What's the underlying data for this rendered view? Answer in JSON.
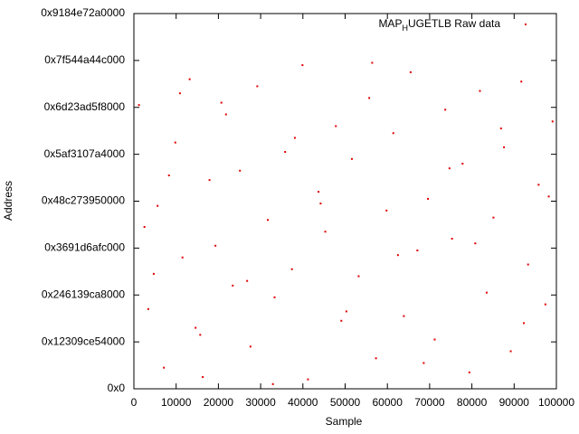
{
  "chart_data": {
    "type": "scatter",
    "xlabel": "Sample",
    "ylabel": "Address",
    "xlim": [
      0,
      100000
    ],
    "xticks": [
      0,
      10000,
      20000,
      30000,
      40000,
      50000,
      60000,
      70000,
      80000,
      90000,
      100000
    ],
    "ylim": [
      0,
      160000000000000.0
    ],
    "yticks": [
      {
        "value": 0,
        "label": "0x0"
      },
      {
        "value": 20000000000000.0,
        "label": "0x12309ce54000"
      },
      {
        "value": 40000000000000.0,
        "label": "0x246139ca8000"
      },
      {
        "value": 60000000000000.0,
        "label": "0x3691d6afc000"
      },
      {
        "value": 80000000000000.0,
        "label": "0x48c273950000"
      },
      {
        "value": 100000000000000.0,
        "label": "0x5af3107a4000"
      },
      {
        "value": 120000000000000.0,
        "label": "0x6d23ad5f8000"
      },
      {
        "value": 140000000000000.0,
        "label": "0x7f544a44c000"
      },
      {
        "value": 160000000000000.0,
        "label": "0x9184e72a0000"
      }
    ],
    "legend": "top-right",
    "series": [
      {
        "name": "MAP_HUGETLB Raw data",
        "color": "#e00000",
        "x": [
          1200,
          3400,
          5600,
          7100,
          9800,
          11500,
          13200,
          15700,
          17900,
          19300,
          21800,
          23400,
          25100,
          27600,
          29200,
          31700,
          33300,
          35800,
          37400,
          39900,
          41200,
          43700,
          45300,
          47800,
          49100,
          51600,
          53200,
          55700,
          57300,
          59800,
          61400,
          63900,
          65500,
          67100,
          69600,
          71200,
          73700,
          75300,
          77800,
          79400,
          81900,
          83500,
          85100,
          87600,
          89200,
          91700,
          93300,
          95800,
          97400,
          99100,
          2500,
          8300,
          14600,
          20700,
          26800,
          32900,
          38100,
          44200,
          50300,
          56400,
          62500,
          68600,
          74700,
          80800,
          86900,
          92300,
          98200,
          4700,
          10900,
          16300
        ],
        "values": [
          121000000000000.0,
          34000000000000.0,
          78000000000000.0,
          9000000000000.0,
          105000000000000.0,
          56000000000000.0,
          132000000000000.0,
          23000000000000.0,
          89000000000000.0,
          61000000000000.0,
          117000000000000.0,
          44000000000000.0,
          93000000000000.0,
          18000000000000.0,
          129000000000000.0,
          72000000000000.0,
          39000000000000.0,
          101000000000000.0,
          51000000000000.0,
          138000000000000.0,
          4000000000000.0,
          84000000000000.0,
          67000000000000.0,
          112000000000000.0,
          29000000000000.0,
          98000000000000.0,
          48000000000000.0,
          124000000000000.0,
          13000000000000.0,
          76000000000000.0,
          109000000000000.0,
          31000000000000.0,
          135000000000000.0,
          59000000000000.0,
          81000000000000.0,
          21000000000000.0,
          119000000000000.0,
          64000000000000.0,
          96000000000000.0,
          7000000000000.0,
          127000000000000.0,
          41000000000000.0,
          73000000000000.0,
          103000000000000.0,
          16000000000000.0,
          131000000000000.0,
          53000000000000.0,
          87000000000000.0,
          36000000000000.0,
          114000000000000.0,
          69000000000000.0,
          91000000000000.0,
          26000000000000.0,
          122000000000000.0,
          46000000000000.0,
          2000000000000.0,
          107000000000000.0,
          79000000000000.0,
          33000000000000.0,
          139000000000000.0,
          57000000000000.0,
          11000000000000.0,
          94000000000000.0,
          62000000000000.0,
          111000000000000.0,
          28000000000000.0,
          82000000000000.0,
          49000000000000.0,
          126000000000000.0,
          5000000000000.0
        ]
      }
    ]
  }
}
